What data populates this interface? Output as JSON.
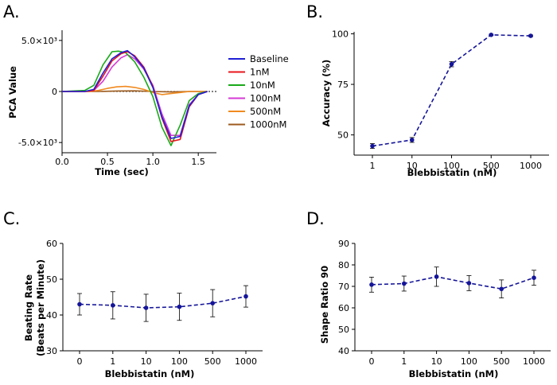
{
  "chart_data": [
    {
      "panel": "A.",
      "type": "line",
      "xlabel": "Time (sec)",
      "ylabel": "PCA Value",
      "xlim": [
        0,
        1.7
      ],
      "ylim": [
        -6000,
        6000
      ],
      "xticks": [
        0.0,
        0.5,
        1.0,
        1.5
      ],
      "xtick_labels": [
        "0.0",
        "0.5",
        "1.0",
        "1.5"
      ],
      "yticks": [
        5000,
        0,
        -5000
      ],
      "ytick_labels": [
        "5.0×10³",
        "0",
        "-5.0×10³"
      ],
      "series": [
        {
          "name": "Baseline",
          "color": "#1f1fd6",
          "x": [
            0,
            0.25,
            0.35,
            0.45,
            0.55,
            0.65,
            0.72,
            0.8,
            0.9,
            1.0,
            1.1,
            1.2,
            1.3,
            1.4,
            1.5,
            1.6
          ],
          "y": [
            0,
            0,
            200,
            1800,
            3200,
            3800,
            4000,
            3400,
            2300,
            400,
            -2500,
            -4600,
            -4400,
            -1400,
            -300,
            0
          ]
        },
        {
          "name": "1nM",
          "color": "#e8141c",
          "x": [
            0,
            0.25,
            0.35,
            0.45,
            0.55,
            0.65,
            0.72,
            0.8,
            0.9,
            1.0,
            1.1,
            1.2,
            1.3,
            1.4,
            1.5,
            1.6
          ],
          "y": [
            0,
            0,
            100,
            1500,
            3000,
            3700,
            3900,
            3500,
            2400,
            500,
            -2600,
            -4900,
            -4700,
            -1500,
            -300,
            0
          ]
        },
        {
          "name": "10nM",
          "color": "#1aaa1a",
          "x": [
            0,
            0.25,
            0.35,
            0.45,
            0.55,
            0.62,
            0.7,
            0.8,
            0.9,
            1.0,
            1.1,
            1.2,
            1.3,
            1.4,
            1.5,
            1.6
          ],
          "y": [
            0,
            100,
            600,
            2600,
            3900,
            3950,
            3800,
            2900,
            1400,
            -500,
            -3500,
            -5300,
            -3300,
            -900,
            -200,
            0
          ]
        },
        {
          "name": "100nM",
          "color": "#d63ad6",
          "x": [
            0,
            0.25,
            0.35,
            0.45,
            0.55,
            0.65,
            0.72,
            0.8,
            0.9,
            1.0,
            1.1,
            1.2,
            1.3,
            1.4,
            1.5,
            1.6
          ],
          "y": [
            0,
            0,
            100,
            1000,
            2400,
            3300,
            3600,
            3200,
            2200,
            600,
            -2200,
            -4300,
            -4300,
            -1300,
            -300,
            0
          ]
        },
        {
          "name": "500nM",
          "color": "#f08a1e",
          "x": [
            0,
            0.3,
            0.4,
            0.5,
            0.6,
            0.7,
            0.8,
            0.9,
            1.0,
            1.1,
            1.2,
            1.3,
            1.4,
            1.5,
            1.6
          ],
          "y": [
            0,
            0,
            100,
            300,
            450,
            500,
            400,
            200,
            -100,
            -300,
            -200,
            -100,
            0,
            0,
            0
          ]
        },
        {
          "name": "1000nM",
          "color": "#9c5a1c",
          "x": [
            0,
            0.4,
            0.6,
            0.8,
            1.0,
            1.2,
            1.4,
            1.6
          ],
          "y": [
            0,
            0,
            50,
            60,
            0,
            -50,
            0,
            0
          ]
        }
      ],
      "zero_line": true
    },
    {
      "panel": "B.",
      "type": "line",
      "style": "dashed-with-error-bars",
      "xlabel": "Blebbistatin (nM)",
      "ylabel": "Accuracy (%)",
      "categories": [
        "1",
        "10",
        "100",
        "500",
        "1000"
      ],
      "values": [
        44.5,
        47.5,
        85.0,
        99.5,
        99.0
      ],
      "errors": [
        1.2,
        1.2,
        1.3,
        0.3,
        0.4
      ],
      "ylim": [
        40,
        101
      ],
      "yticks": [
        50,
        75,
        100
      ],
      "ytick_labels": [
        "50",
        "75",
        "100"
      ],
      "color": "#151599"
    },
    {
      "panel": "C.",
      "type": "line",
      "style": "dashed-with-error-bars",
      "xlabel": "Blebbistatin (nM)",
      "ylabel": "Beating Rate",
      "ylabel2": "(Beats per Minute)",
      "categories": [
        "0",
        "1",
        "10",
        "100",
        "500",
        "1000"
      ],
      "values": [
        43.0,
        42.7,
        42.0,
        42.3,
        43.3,
        45.2
      ],
      "errors": [
        3.0,
        3.8,
        3.8,
        3.8,
        3.8,
        3.0
      ],
      "ylim": [
        30,
        60
      ],
      "yticks": [
        30,
        40,
        50,
        60
      ],
      "ytick_labels": [
        "30",
        "40",
        "50",
        "60"
      ],
      "color": "#151599"
    },
    {
      "panel": "D.",
      "type": "line",
      "style": "dashed-with-error-bars",
      "xlabel": "Blebbistatin (nM)",
      "ylabel": "Shape Ratio 90",
      "categories": [
        "0",
        "1",
        "10",
        "100",
        "500",
        "1000"
      ],
      "values": [
        70.8,
        71.3,
        74.5,
        71.5,
        68.8,
        74.0
      ],
      "errors": [
        3.5,
        3.5,
        4.5,
        3.5,
        4.2,
        3.5
      ],
      "ylim": [
        40,
        90
      ],
      "yticks": [
        40,
        50,
        60,
        70,
        80,
        90
      ],
      "ytick_labels": [
        "40",
        "50",
        "60",
        "70",
        "80",
        "90"
      ],
      "color": "#151599"
    }
  ]
}
